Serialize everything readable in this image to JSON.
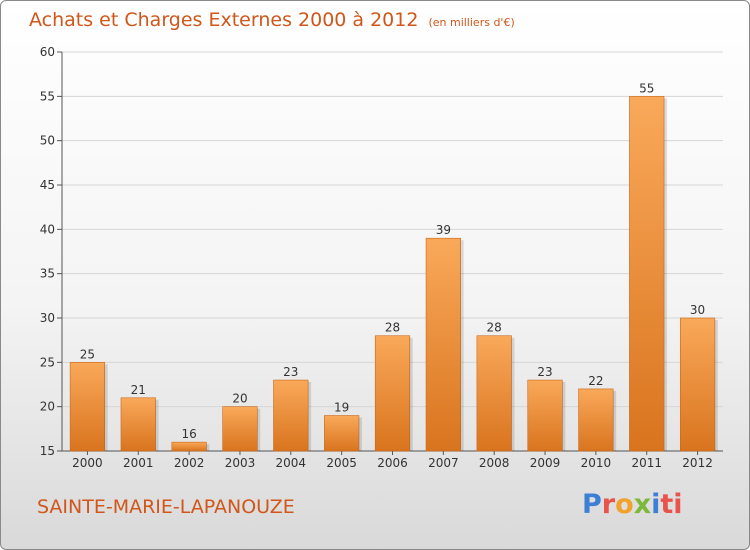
{
  "header": {
    "title": "Achats et Charges Externes 2000 à 2012",
    "unit": "(en milliers d'€)"
  },
  "footer": {
    "commune": "SAINTE-MARIE-LAPANOUZE",
    "logo": [
      "P",
      "r",
      "o",
      "x",
      "i",
      "t",
      "i"
    ]
  },
  "chart_data": {
    "type": "bar",
    "title": "Achats et Charges Externes 2000 à 2012",
    "subtitle": "(en milliers d'€)",
    "categories": [
      "2000",
      "2001",
      "2002",
      "2003",
      "2004",
      "2005",
      "2006",
      "2007",
      "2008",
      "2009",
      "2010",
      "2011",
      "2012"
    ],
    "values": [
      25,
      21,
      16,
      20,
      23,
      19,
      28,
      39,
      28,
      23,
      22,
      55,
      30
    ],
    "ylim": [
      15,
      60
    ],
    "yticks": [
      15,
      20,
      25,
      30,
      35,
      40,
      45,
      50,
      55,
      60
    ],
    "grid": true,
    "colors": {
      "bar_light": "#f9a95a",
      "bar_dark": "#d9741e",
      "grid": "#d6d6d6",
      "text": "#333333",
      "accent": "#d0561a"
    }
  }
}
